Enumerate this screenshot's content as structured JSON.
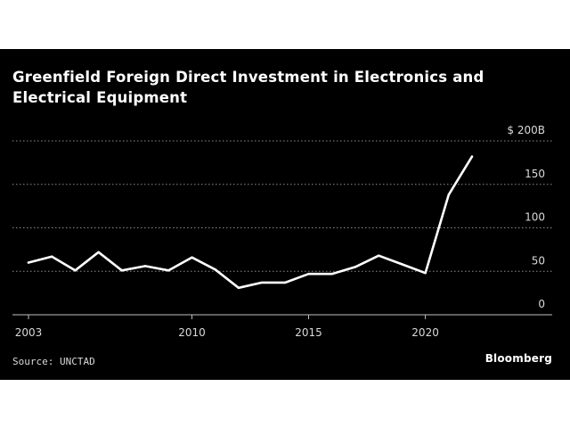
{
  "chart_data": {
    "type": "line",
    "title": "Greenfield Foreign Direct Investment in Electronics and Electrical Equipment",
    "xlabel": "",
    "ylabel": "",
    "ylim": [
      0,
      200
    ],
    "xlim": [
      2003,
      2022
    ],
    "y_ticks": [
      {
        "value": 200,
        "label": "$ 200B"
      },
      {
        "value": 150,
        "label": "150"
      },
      {
        "value": 100,
        "label": "100"
      },
      {
        "value": 50,
        "label": "50"
      },
      {
        "value": 0,
        "label": "0"
      }
    ],
    "x_ticks": [
      {
        "value": 2003,
        "label": "2003"
      },
      {
        "value": 2010,
        "label": "2010"
      },
      {
        "value": 2015,
        "label": "2015"
      },
      {
        "value": 2020,
        "label": "2020"
      }
    ],
    "grid": true,
    "legend": "none",
    "series": [
      {
        "color": "#ffffff",
        "x": [
          2003,
          2004,
          2005,
          2006,
          2007,
          2008,
          2009,
          2010,
          2011,
          2012,
          2013,
          2014,
          2015,
          2016,
          2017,
          2018,
          2019,
          2020,
          2021,
          2022
        ],
        "y": [
          60,
          67,
          51,
          72,
          51,
          56,
          51,
          66,
          52,
          31,
          37,
          37,
          47,
          47,
          55,
          68,
          58,
          48,
          138,
          182
        ]
      }
    ]
  },
  "footer": {
    "source": "Source: UNCTAD",
    "brand": "Bloomberg"
  }
}
